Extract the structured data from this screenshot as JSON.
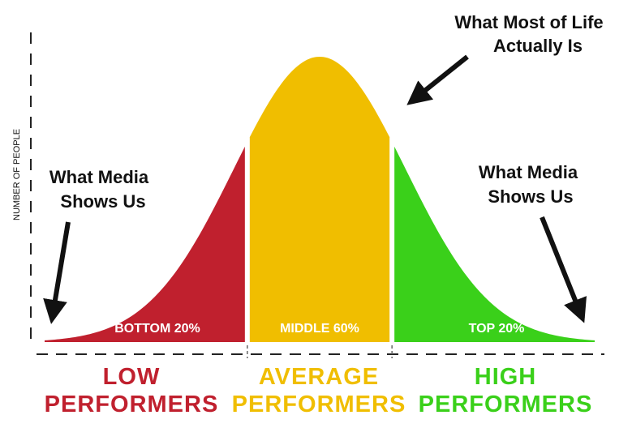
{
  "chart_data": {
    "type": "area",
    "ylabel": "NUMBER OF PEOPLE",
    "xlabel": "",
    "title": "",
    "grid": false,
    "segments": [
      {
        "name": "BOTTOM 20%",
        "from_percentile": 0,
        "to_percentile": 20,
        "color": "#c0202e",
        "category_lines": [
          "LOW",
          "PERFORMERS"
        ]
      },
      {
        "name": "MIDDLE 60%",
        "from_percentile": 20,
        "to_percentile": 80,
        "color": "#f0be00",
        "category_lines": [
          "AVERAGE",
          "PERFORMERS"
        ]
      },
      {
        "name": "TOP 20%",
        "from_percentile": 80,
        "to_percentile": 100,
        "color": "#3ad01a",
        "category_lines": [
          "HIGH",
          "PERFORMERS"
        ]
      }
    ],
    "annotations": [
      {
        "lines": [
          "What Media",
          "Shows Us"
        ],
        "points_to": "left-tail"
      },
      {
        "lines": [
          "What Most of Life",
          "Actually Is"
        ],
        "points_to": "peak"
      },
      {
        "lines": [
          "What Media",
          "Shows Us"
        ],
        "points_to": "right-tail"
      }
    ]
  }
}
